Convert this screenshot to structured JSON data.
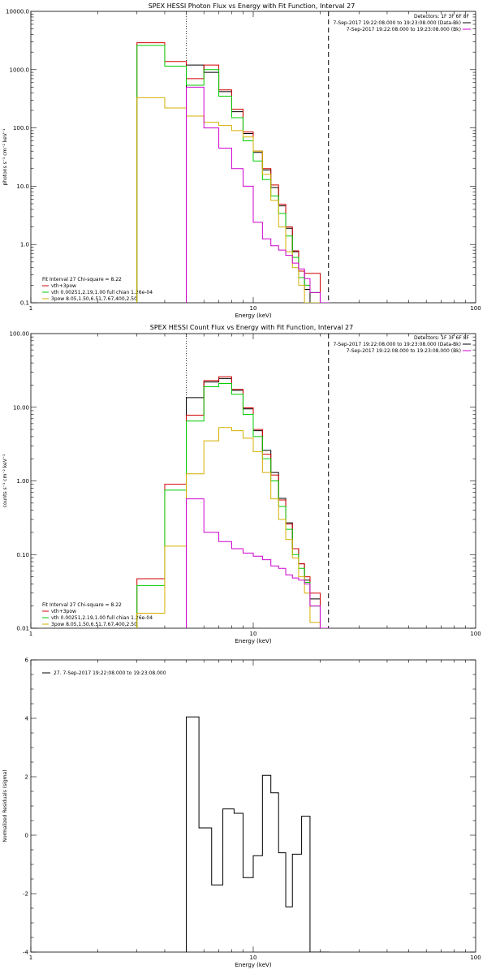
{
  "chart_data": [
    {
      "type": "line",
      "title": "SPEX HESSI Photon Flux vs Energy with Fit Function, Interval 27",
      "xlabel": "Energy (keV)",
      "ylabel": "photons s⁻¹ cm⁻² keV⁻¹",
      "xscale": "log",
      "yscale": "log",
      "xlim": [
        1,
        100
      ],
      "ylim": [
        0.1,
        10000
      ],
      "x_ticks": [
        "1",
        "10",
        "100"
      ],
      "y_ticks": [
        "0.1",
        "1.0",
        "10.0",
        "100.0",
        "1000.0",
        "10000.0"
      ],
      "vlines": [
        {
          "x": 5.0,
          "style": "dotted"
        },
        {
          "x": 21.8,
          "style": "dashed"
        }
      ],
      "info_right": [
        {
          "text": "Detectors: 1F 3F 6F 8F"
        },
        {
          "text": "7-Sep-2017 19:22:08.000 to 19:23:08.000 (Data-Bk)",
          "color": "#000000"
        },
        {
          "text": "7-Sep-2017 19:22:08.000 to 19:23:08.000 (Bk)",
          "color": "#d000d0"
        }
      ],
      "fit_info": "Fit Interval 27   Chi-square = 8.22",
      "legend": [
        {
          "label": "vth+3pow",
          "color": "#d00000"
        },
        {
          "label": "vth 0.00251,2.19,1.00  full chian 1.26e-04",
          "color": "#00cc00"
        },
        {
          "label": "3pow 8.05,1.50,6.51,7.67,400,2.50",
          "color": "#d4b000"
        }
      ],
      "edges": [
        3.0,
        4.0,
        5.0,
        6.0,
        7.0,
        8.0,
        9.0,
        10.0,
        11.0,
        12.0,
        13.0,
        14.0,
        15.0,
        16.0,
        17.0,
        18.0,
        20.0,
        22.0
      ],
      "series": [
        {
          "color": "#000000",
          "values": [
            null,
            null,
            1200,
            900,
            420,
            190,
            80,
            38,
            19,
            9.5,
            4.6,
            1.9,
            0.75,
            0.35,
            0.17,
            0.1,
            0.1
          ]
        },
        {
          "name": "vth+3pow",
          "color": "#d00000",
          "values": [
            2900,
            1380,
            700,
            1200,
            450,
            210,
            85,
            40,
            20,
            10.5,
            4.9,
            2.0,
            0.78,
            0.35,
            0.32,
            0.32,
            0.1
          ]
        },
        {
          "color": "#00cc00",
          "values": [
            2600,
            1150,
            540,
            1000,
            350,
            150,
            60,
            27,
            13,
            6.8,
            3.4,
            1.4,
            0.6,
            0.27,
            0.2,
            0.15,
            0.1
          ]
        },
        {
          "color": "#d4b000",
          "values": [
            330,
            220,
            160,
            125,
            110,
            90,
            70,
            40,
            16,
            5.7,
            2.0,
            0.75,
            0.4,
            0.2,
            0.1,
            0.1,
            0.1
          ]
        },
        {
          "color": "#d000d0",
          "values": [
            null,
            null,
            500,
            100,
            45,
            20,
            10,
            2.4,
            1.25,
            0.95,
            0.8,
            0.65,
            0.48,
            0.38,
            0.26,
            0.15,
            0.1
          ]
        }
      ]
    },
    {
      "type": "line",
      "title": "SPEX HESSI Count Flux vs Energy with Fit Function, Interval 27",
      "xlabel": "Energy (keV)",
      "ylabel": "counts s⁻¹ cm⁻² keV⁻¹",
      "xscale": "log",
      "yscale": "log",
      "xlim": [
        1,
        100
      ],
      "ylim": [
        0.01,
        100
      ],
      "x_ticks": [
        "1",
        "10",
        "100"
      ],
      "y_ticks": [
        "0.01",
        "0.10",
        "1.00",
        "10.00",
        "100.00"
      ],
      "vlines": [
        {
          "x": 5.0,
          "style": "dotted"
        },
        {
          "x": 21.8,
          "style": "dashed"
        }
      ],
      "info_right": [
        {
          "text": "Detectors: 1F 3F 6F 8F"
        },
        {
          "text": "7-Sep-2017 19:22:08.000 to 19:23:08.000 (Data-Bk)",
          "color": "#000000"
        },
        {
          "text": "7-Sep-2017 19:22:08.000 to 19:23:08.000 (Bk)",
          "color": "#d000d0"
        }
      ],
      "fit_info": "Fit Interval 27   Chi-square = 8.22",
      "legend": [
        {
          "label": "vth+3pow",
          "color": "#d00000"
        },
        {
          "label": "vth 0.00251,2.19,1.00  full chian 1.26e-04",
          "color": "#00cc00"
        },
        {
          "label": "3pow 8.05,1.50,6.51,7.67,400,2.50",
          "color": "#d4b000"
        }
      ],
      "edges": [
        3.0,
        4.0,
        5.0,
        6.0,
        7.0,
        8.0,
        9.0,
        10.0,
        11.0,
        12.0,
        13.0,
        14.0,
        15.0,
        16.0,
        17.0,
        18.0,
        20.0,
        22.0
      ],
      "series": [
        {
          "color": "#000000",
          "values": [
            null,
            null,
            13.5,
            22,
            24.5,
            17,
            9.5,
            4.8,
            2.6,
            1.3,
            0.58,
            0.27,
            0.12,
            0.075,
            0.045,
            0.025,
            0.01
          ]
        },
        {
          "name": "vth+3pow",
          "color": "#d00000",
          "values": [
            0.047,
            0.9,
            7.8,
            23,
            26,
            17.5,
            9.8,
            5.0,
            2.3,
            1.2,
            0.55,
            0.26,
            0.12,
            0.075,
            0.05,
            0.03,
            0.01
          ]
        },
        {
          "color": "#00cc00",
          "values": [
            0.038,
            0.75,
            6.5,
            19,
            21,
            15,
            8.0,
            4.0,
            2.0,
            1.0,
            0.45,
            0.22,
            0.1,
            0.065,
            0.042,
            0.02,
            0.01
          ]
        },
        {
          "color": "#d4b000",
          "values": [
            0.016,
            0.13,
            1.25,
            3.5,
            5.3,
            4.8,
            3.8,
            2.5,
            1.3,
            0.57,
            0.3,
            0.16,
            0.09,
            0.05,
            0.03,
            0.012,
            0.01
          ]
        },
        {
          "color": "#d000d0",
          "values": [
            null,
            null,
            0.57,
            0.2,
            0.15,
            0.12,
            0.105,
            0.095,
            0.085,
            0.07,
            0.065,
            0.053,
            0.048,
            0.045,
            0.04,
            0.02,
            0.01
          ]
        }
      ]
    },
    {
      "type": "line",
      "title": "",
      "xlabel": "Energy (keV)",
      "ylabel": "Normalized Residuals (sigma)",
      "xscale": "log",
      "yscale": "linear",
      "xlim": [
        1,
        100
      ],
      "ylim": [
        -4,
        6
      ],
      "x_ticks": [
        "1",
        "10",
        "100"
      ],
      "y_ticks": [
        "-4",
        "-2",
        "0",
        "2",
        "4",
        "6"
      ],
      "legend": [
        {
          "label": "27.  7-Sep-2017 19:22:08.000 to 19:23:08.000",
          "color": "#000000"
        }
      ],
      "edges": [
        5.0,
        5.7,
        6.5,
        7.3,
        8.2,
        9.0,
        10.0,
        11.0,
        12.0,
        13.0,
        14.0,
        15.0,
        16.5,
        18.0,
        20.0,
        22.0
      ],
      "series": [
        {
          "color": "#000000",
          "values": [
            4.05,
            0.25,
            -1.7,
            0.9,
            0.75,
            -1.45,
            -0.7,
            2.05,
            1.45,
            -0.6,
            -2.45,
            -0.65,
            0.65,
            -4,
            -4
          ]
        }
      ]
    }
  ]
}
